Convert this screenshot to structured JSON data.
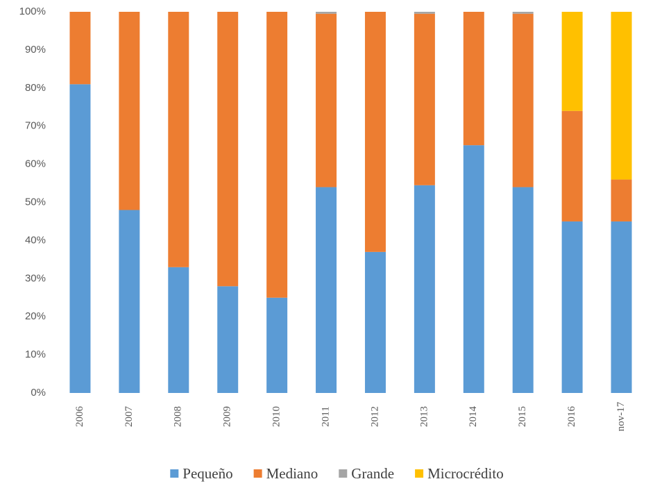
{
  "chart_data": {
    "type": "stacked_bar",
    "categories": [
      "2006",
      "2007",
      "2008",
      "2009",
      "2010",
      "2011",
      "2012",
      "2013",
      "2014",
      "2015",
      "2016",
      "nov-17"
    ],
    "series": [
      {
        "name": "Pequeño",
        "color": "#5b9bd5",
        "values": [
          81,
          48,
          33,
          28,
          25,
          54,
          37,
          54.5,
          65,
          54,
          45,
          45
        ]
      },
      {
        "name": "Mediano",
        "color": "#ed7d31",
        "values": [
          19,
          52,
          67,
          72,
          75,
          45.5,
          63,
          45,
          35,
          45.5,
          29,
          11
        ]
      },
      {
        "name": "Grande",
        "color": "#a5a5a5",
        "values": [
          0,
          0,
          0,
          0,
          0,
          0.5,
          0,
          0.5,
          0,
          0.5,
          0,
          0
        ]
      },
      {
        "name": "Microcrédito",
        "color": "#ffc000",
        "values": [
          0,
          0,
          0,
          0,
          0,
          0,
          0,
          0,
          0,
          0,
          26,
          44
        ]
      }
    ],
    "ylim": [
      0,
      100
    ],
    "yticks": [
      {
        "value": 0,
        "label": "0%"
      },
      {
        "value": 10,
        "label": "10%"
      },
      {
        "value": 20,
        "label": "20%"
      },
      {
        "value": 30,
        "label": "30%"
      },
      {
        "value": 40,
        "label": "40%"
      },
      {
        "value": 50,
        "label": "50%"
      },
      {
        "value": 60,
        "label": "60%"
      },
      {
        "value": 70,
        "label": "70%"
      },
      {
        "value": 80,
        "label": "80%"
      },
      {
        "value": 90,
        "label": "90%"
      },
      {
        "value": 100,
        "label": "100%"
      }
    ],
    "grid": false,
    "legend": "bottom"
  }
}
